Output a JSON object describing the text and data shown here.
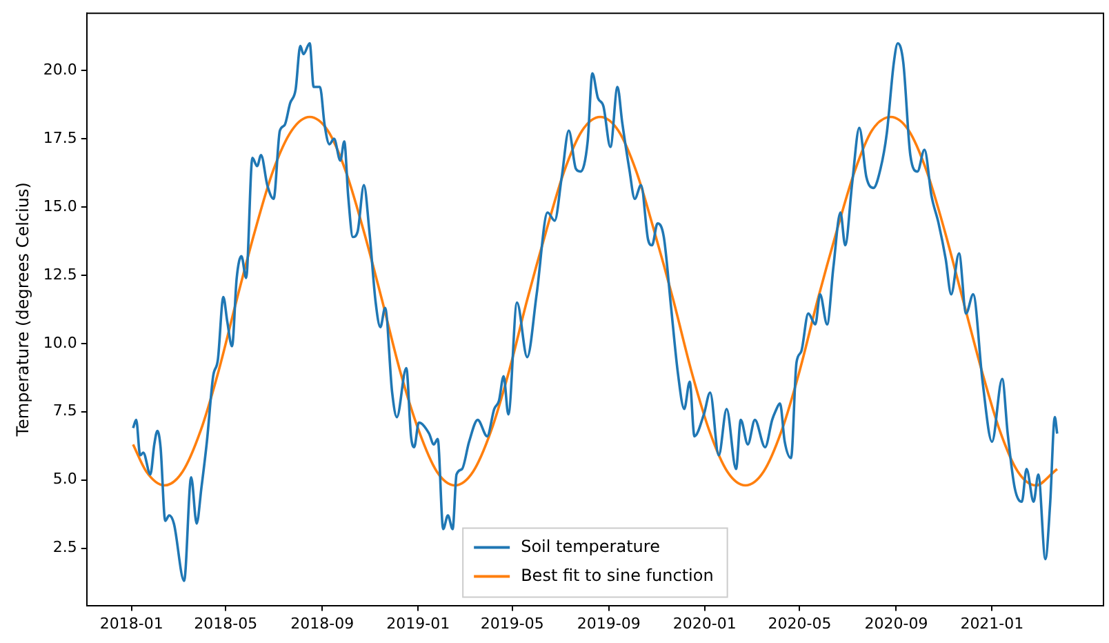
{
  "chart_data": {
    "type": "line",
    "ylabel": "Temperature (degrees Celcius)",
    "xlim": [
      "2017-11-05",
      "2021-05-23"
    ],
    "ylim": [
      0.4,
      22.1
    ],
    "xticks": [
      "2018-01",
      "2018-05",
      "2018-09",
      "2019-01",
      "2019-05",
      "2019-09",
      "2020-01",
      "2020-05",
      "2020-09",
      "2021-01"
    ],
    "yticks": [
      {
        "value": 2.5,
        "label": "2.5"
      },
      {
        "value": 5,
        "label": "5.0"
      },
      {
        "value": 7.5,
        "label": "7.5"
      },
      {
        "value": 10,
        "label": "10.0"
      },
      {
        "value": 12.5,
        "label": "12.5"
      },
      {
        "value": 15,
        "label": "15.0"
      },
      {
        "value": 17.5,
        "label": "17.5"
      },
      {
        "value": 20,
        "label": "20.0"
      }
    ],
    "grid": false,
    "legend": "bottom",
    "marker": "none",
    "line_style": "solid",
    "series": [
      {
        "name": "Soil temperature",
        "color": "#1f77b4",
        "x": [
          "2018-01-03",
          "2018-01-07",
          "2018-01-12",
          "2018-01-16",
          "2018-01-25",
          "2018-01-30",
          "2018-02-03",
          "2018-02-07",
          "2018-02-13",
          "2018-02-18",
          "2018-02-24",
          "2018-03-09",
          "2018-03-18",
          "2018-03-25",
          "2018-03-31",
          "2018-04-07",
          "2018-04-15",
          "2018-04-21",
          "2018-04-28",
          "2018-05-03",
          "2018-05-09",
          "2018-05-15",
          "2018-05-21",
          "2018-05-27",
          "2018-06-04",
          "2018-06-10",
          "2018-06-15",
          "2018-06-23",
          "2018-07-01",
          "2018-07-09",
          "2018-07-15",
          "2018-07-22",
          "2018-07-29",
          "2018-08-04",
          "2018-08-08",
          "2018-08-16",
          "2018-08-21",
          "2018-08-29",
          "2018-09-04",
          "2018-09-10",
          "2018-09-16",
          "2018-09-24",
          "2018-09-29",
          "2018-10-04",
          "2018-10-10",
          "2018-10-16",
          "2018-10-24",
          "2018-10-31",
          "2018-11-08",
          "2018-11-14",
          "2018-11-20",
          "2018-11-29",
          "2018-12-05",
          "2018-12-17",
          "2018-12-23",
          "2018-12-27",
          "2019-01-02",
          "2019-01-15",
          "2019-01-21",
          "2019-01-26",
          "2019-02-02",
          "2019-02-08",
          "2019-02-14",
          "2019-02-19",
          "2019-02-26",
          "2019-03-07",
          "2019-03-18",
          "2019-03-30",
          "2019-04-08",
          "2019-04-14",
          "2019-04-20",
          "2019-04-26",
          "2019-05-07",
          "2019-05-20",
          "2019-06-01",
          "2019-06-15",
          "2019-06-24",
          "2019-07-03",
          "2019-07-12",
          "2019-07-21",
          "2019-07-27",
          "2019-08-05",
          "2019-08-11",
          "2019-08-18",
          "2019-08-25",
          "2019-09-03",
          "2019-09-12",
          "2019-09-18",
          "2019-09-27",
          "2019-10-04",
          "2019-10-12",
          "2019-10-21",
          "2019-10-26",
          "2019-11-02",
          "2019-11-10",
          "2019-11-19",
          "2019-11-28",
          "2019-12-06",
          "2019-12-13",
          "2019-12-19",
          "2019-12-31",
          "2020-01-08",
          "2020-01-19",
          "2020-01-29",
          "2020-02-10",
          "2020-02-16",
          "2020-02-25",
          "2020-03-05",
          "2020-03-18",
          "2020-03-27",
          "2020-03-31",
          "2020-04-06",
          "2020-04-12",
          "2020-04-20",
          "2020-04-27",
          "2020-05-03",
          "2020-05-12",
          "2020-05-21",
          "2020-05-27",
          "2020-06-05",
          "2020-06-13",
          "2020-06-22",
          "2020-06-28",
          "2020-07-07",
          "2020-07-16",
          "2020-07-25",
          "2020-08-03",
          "2020-08-12",
          "2020-08-20",
          "2020-08-29",
          "2020-09-03",
          "2020-09-10",
          "2020-09-19",
          "2020-09-28",
          "2020-10-07",
          "2020-10-16",
          "2020-10-25",
          "2020-11-03",
          "2020-11-10",
          "2020-11-20",
          "2020-11-29",
          "2020-12-08",
          "2020-12-20",
          "2021-01-01",
          "2021-01-14",
          "2021-01-21",
          "2021-01-30",
          "2021-02-08",
          "2021-02-14",
          "2021-02-23",
          "2021-03-01",
          "2021-03-10",
          "2021-03-16",
          "2021-03-22",
          "2021-03-25"
        ],
        "values": [
          6.9,
          7.2,
          5.9,
          6.0,
          5.2,
          6.3,
          6.8,
          6.2,
          3.5,
          3.7,
          3.4,
          1.3,
          5.1,
          3.4,
          4.7,
          6.4,
          8.8,
          9.4,
          11.7,
          10.8,
          9.9,
          12.4,
          13.2,
          12.4,
          16.8,
          16.5,
          16.9,
          15.8,
          15.3,
          17.8,
          18.0,
          18.8,
          19.3,
          20.9,
          20.6,
          21.0,
          19.4,
          19.4,
          18.0,
          17.3,
          17.5,
          16.7,
          17.4,
          15.4,
          13.9,
          14.1,
          15.8,
          14.1,
          11.5,
          10.6,
          11.3,
          8.2,
          7.3,
          9.1,
          6.6,
          6.2,
          7.1,
          6.7,
          6.3,
          6.5,
          3.2,
          3.7,
          3.2,
          5.2,
          5.4,
          6.4,
          7.2,
          6.6,
          7.6,
          7.9,
          8.8,
          7.4,
          11.5,
          9.5,
          11.8,
          14.8,
          14.5,
          16.1,
          17.8,
          16.4,
          16.3,
          17.4,
          19.9,
          19.0,
          18.7,
          17.2,
          19.4,
          18.1,
          16.4,
          15.3,
          15.8,
          13.8,
          13.6,
          14.4,
          13.9,
          11.4,
          8.9,
          7.6,
          8.6,
          6.6,
          7.4,
          8.2,
          5.9,
          7.6,
          5.4,
          7.2,
          6.3,
          7.2,
          6.2,
          7.2,
          7.5,
          7.8,
          6.4,
          5.8,
          9.3,
          9.7,
          11.1,
          10.7,
          11.8,
          10.7,
          12.8,
          14.8,
          13.6,
          15.9,
          17.9,
          16.1,
          15.7,
          16.4,
          17.7,
          20.3,
          21.0,
          20.3,
          16.9,
          16.3,
          17.1,
          15.4,
          14.4,
          13.1,
          11.8,
          13.3,
          11.1,
          11.8,
          8.6,
          6.4,
          8.7,
          6.7,
          4.7,
          4.2,
          5.4,
          4.2,
          5.2,
          2.1,
          4.1,
          7.3,
          6.7
        ]
      },
      {
        "name": "Best fit to sine function",
        "color": "#ff7f0e",
        "x": [
          "2018-01-03",
          "2018-01-20",
          "2018-02-12",
          "2018-03-07",
          "2018-03-30",
          "2018-04-22",
          "2018-05-15",
          "2018-06-07",
          "2018-06-30",
          "2018-07-24",
          "2018-08-16",
          "2018-09-08",
          "2018-10-01",
          "2018-10-24",
          "2018-11-16",
          "2018-12-09",
          "2019-01-02",
          "2019-01-25",
          "2019-02-17",
          "2019-03-12",
          "2019-04-04",
          "2019-04-27",
          "2019-05-20",
          "2019-06-13",
          "2019-07-06",
          "2019-07-29",
          "2019-08-21",
          "2019-09-13",
          "2019-10-06",
          "2019-10-29",
          "2019-11-22",
          "2019-12-15",
          "2020-01-07",
          "2020-01-30",
          "2020-02-22",
          "2020-03-16",
          "2020-04-08",
          "2020-05-01",
          "2020-05-24",
          "2020-06-17",
          "2020-07-10",
          "2020-08-01",
          "2020-08-25",
          "2020-09-17",
          "2020-10-10",
          "2020-11-02",
          "2020-11-25",
          "2020-12-19",
          "2021-01-11",
          "2021-02-03",
          "2021-02-26",
          "2021-03-21",
          "2021-03-25"
        ],
        "values": [
          6.3,
          5.3,
          4.8,
          5.3,
          6.8,
          9.0,
          11.6,
          14.1,
          16.3,
          17.8,
          18.3,
          17.8,
          16.3,
          14.1,
          11.6,
          9.0,
          6.8,
          5.3,
          4.8,
          5.3,
          6.8,
          9.0,
          11.6,
          14.1,
          16.3,
          17.8,
          18.3,
          17.8,
          16.3,
          14.1,
          11.6,
          9.0,
          6.8,
          5.3,
          4.8,
          5.3,
          6.8,
          9.0,
          11.6,
          14.1,
          16.3,
          17.8,
          18.3,
          17.8,
          16.3,
          14.1,
          11.6,
          9.0,
          6.8,
          5.3,
          4.8,
          5.3,
          5.4
        ]
      }
    ]
  }
}
